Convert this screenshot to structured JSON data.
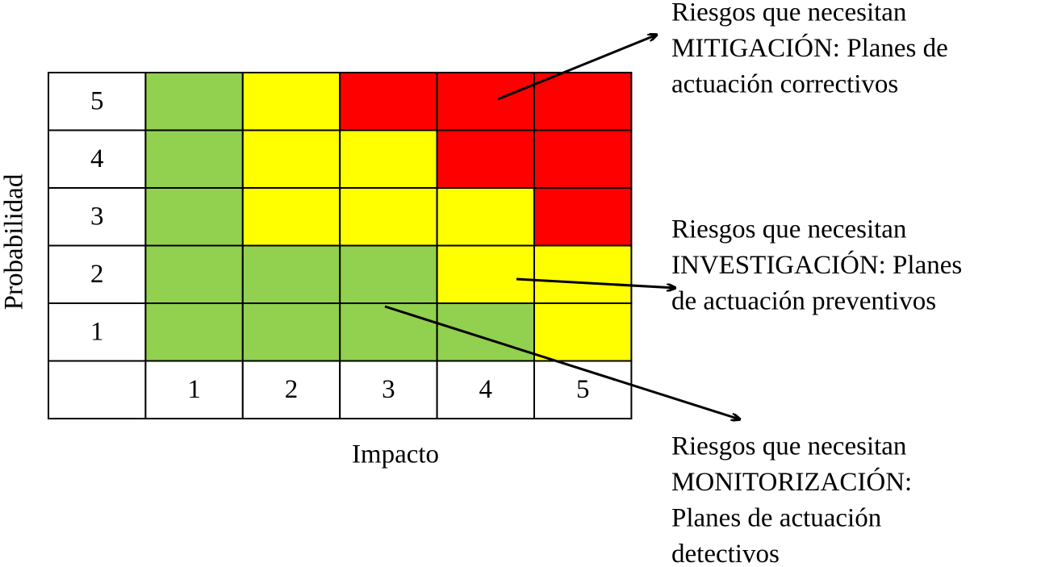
{
  "matrix": {
    "y_axis_label": "Probabilidad",
    "x_axis_label": "Impacto",
    "column_labels": [
      "1",
      "2",
      "3",
      "4",
      "5"
    ],
    "rows": [
      {
        "label": "5",
        "cells": [
          "#92d050",
          "#ffff00",
          "#ff0000",
          "#ff0000",
          "#ff0000"
        ]
      },
      {
        "label": "4",
        "cells": [
          "#92d050",
          "#ffff00",
          "#ffff00",
          "#ff0000",
          "#ff0000"
        ]
      },
      {
        "label": "3",
        "cells": [
          "#92d050",
          "#ffff00",
          "#ffff00",
          "#ffff00",
          "#ff0000"
        ]
      },
      {
        "label": "2",
        "cells": [
          "#92d050",
          "#92d050",
          "#92d050",
          "#ffff00",
          "#ffff00"
        ]
      },
      {
        "label": "1",
        "cells": [
          "#92d050",
          "#92d050",
          "#92d050",
          "#92d050",
          "#ffff00"
        ]
      }
    ]
  },
  "annotations": [
    {
      "lines": [
        "Riesgos que necesitan",
        "MITIGACIÓN: Planes de",
        "actuación correctivos"
      ]
    },
    {
      "lines": [
        "Riesgos que necesitan",
        "INVESTIGACIÓN: Planes",
        "de actuación preventivos"
      ]
    },
    {
      "lines": [
        "Riesgos que necesitan",
        "MONITORIZACIÓN:",
        "Planes de actuación",
        "detectivos"
      ]
    }
  ]
}
